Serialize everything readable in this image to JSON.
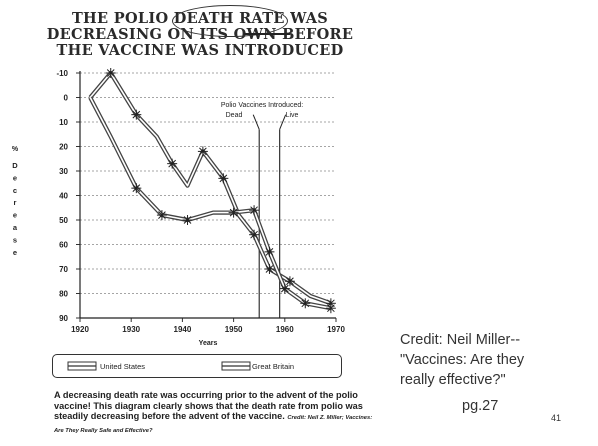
{
  "title": {
    "line1_a": "THE POLIO ",
    "line1_b": "DEATH RATE",
    "line1_c": " WAS",
    "line2_a": "DECREASING ",
    "line2_b": "ON ",
    "line2_c": "ITS OWN",
    "line2_d": " BEFORE",
    "line3": "THE VACCINE WAS INTRODUCED"
  },
  "chart_data": {
    "type": "line",
    "title": "THE POLIO DEATH RATE WAS DECREASING ON ITS OWN BEFORE THE VACCINE WAS INTRODUCED",
    "xlabel": "Years",
    "ylabel": "% Decrease",
    "xlim": [
      1920,
      1970
    ],
    "ylim": [
      -10,
      90
    ],
    "y_inverted": true,
    "grid": true,
    "x_ticks": [
      "1920",
      "1930",
      "1940",
      "1950",
      "1960",
      "1970"
    ],
    "y_ticks": [
      "-10",
      "0",
      "10",
      "20",
      "30",
      "40",
      "50",
      "60",
      "70",
      "80",
      "90"
    ],
    "series": [
      {
        "name": "United States",
        "marker": "asterisk",
        "x": [
          1922,
          1926,
          1931,
          1935,
          1938,
          1941,
          1944,
          1948,
          1951,
          1954,
          1957,
          1961,
          1965,
          1969
        ],
        "y": [
          0,
          -10,
          7,
          16,
          27,
          36,
          22,
          33,
          48,
          56,
          70,
          75,
          81,
          84
        ]
      },
      {
        "name": "Great Britain",
        "marker": "asterisk",
        "x": [
          1922,
          1926,
          1931,
          1936,
          1941,
          1946,
          1950,
          1954,
          1957,
          1960,
          1964,
          1969
        ],
        "y": [
          0,
          16,
          37,
          48,
          50,
          47,
          47,
          46,
          63,
          78,
          84,
          86
        ]
      }
    ],
    "annotations": {
      "heading": "Polio Vaccines Introduced:",
      "dead_label": "Dead",
      "live_label": "Live",
      "dead_year": 1955,
      "live_year": 1959
    },
    "legend_placement": "bottom"
  },
  "credit": {
    "line1": "Credit: Neil Miller--",
    "line2": "\"Vaccines: Are they",
    "line3": "really effective?\""
  },
  "page_ref": "pg.27",
  "slide_number": "41",
  "caption": {
    "text": "A decreasing death rate was occurring prior to the advent of the polio vaccine! This diagram clearly shows that the death rate from polio was steadily decreasing before the advent of the vaccine.",
    "source": "Credit: Neil Z. Miller; Vaccines: Are They Really Safe and Effective?"
  }
}
